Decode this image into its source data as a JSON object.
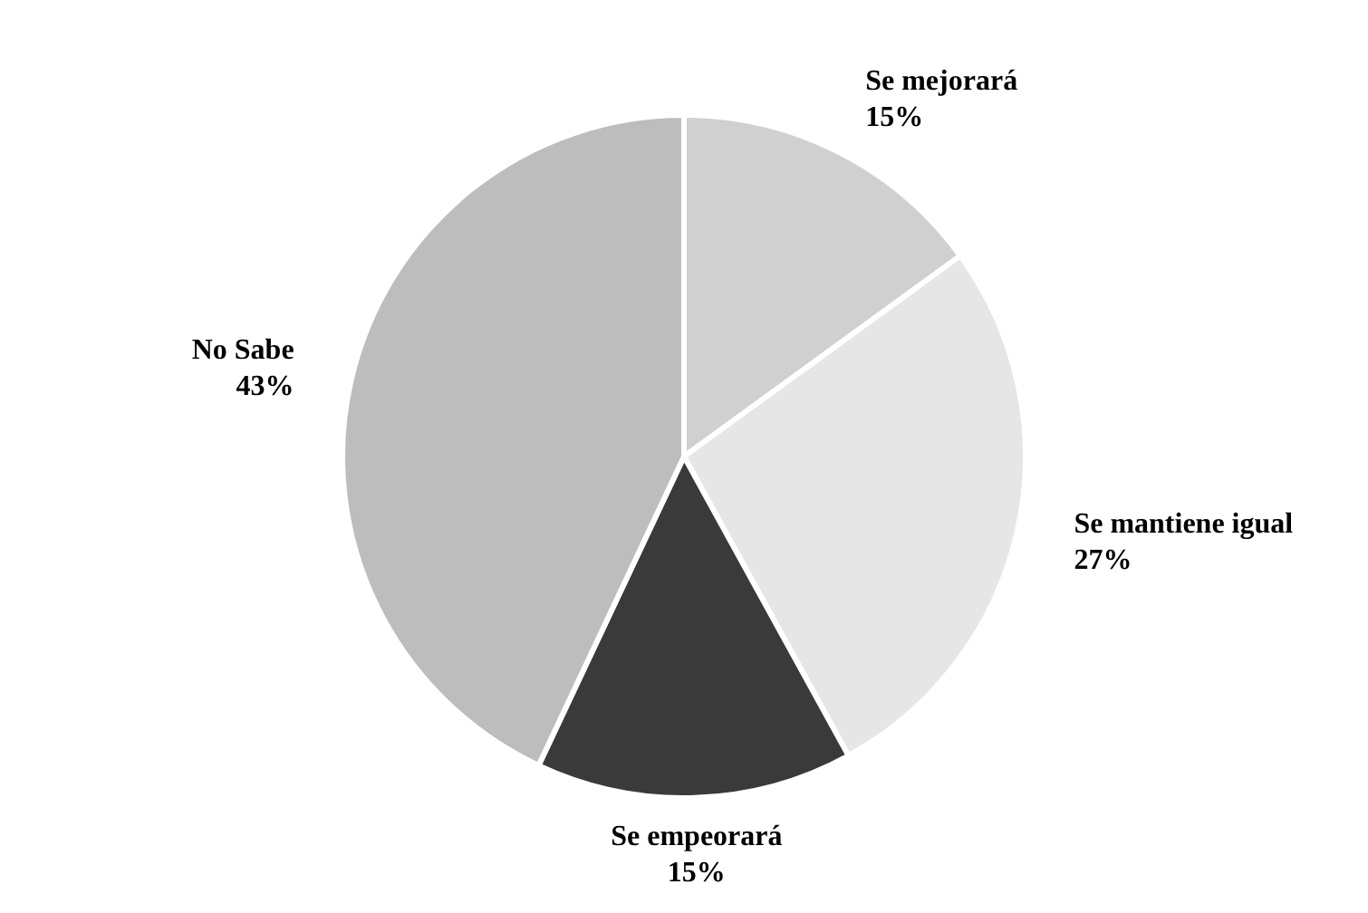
{
  "chart_data": {
    "type": "pie",
    "categories": [
      "Se mejorará",
      "Se mantiene igual",
      "Se empeorará",
      "No Sabe"
    ],
    "values": [
      15,
      27,
      15,
      43
    ],
    "value_labels": [
      "15%",
      "27%",
      "15%",
      "43%"
    ],
    "colors": [
      "#d0d0d0",
      "#e6e6e6",
      "#3a3a3a",
      "#bdbdbd"
    ],
    "legend": false
  }
}
